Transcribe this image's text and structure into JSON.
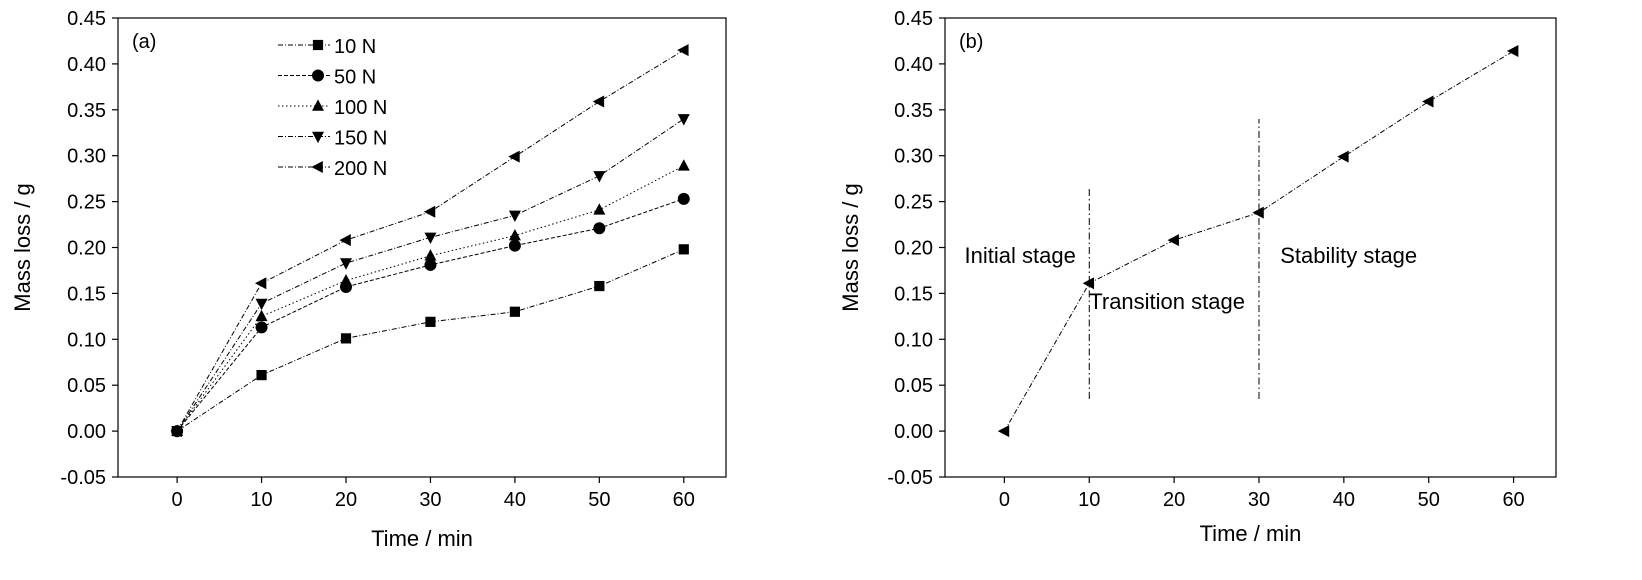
{
  "chart_data": [
    {
      "type": "line",
      "panel_label": "(a)",
      "xlabel": "Time / min",
      "ylabel": "Mass loss / g",
      "xlim": [
        -7,
        65
      ],
      "ylim": [
        -0.05,
        0.45
      ],
      "x_ticks": [
        0,
        10,
        20,
        30,
        40,
        50,
        60
      ],
      "y_ticks": [
        -0.05,
        0.0,
        0.05,
        0.1,
        0.15,
        0.2,
        0.25,
        0.3,
        0.35,
        0.4,
        0.45
      ],
      "x_tick_labels": [
        "0",
        "10",
        "20",
        "30",
        "40",
        "50",
        "60"
      ],
      "y_tick_labels": [
        "-0.05",
        "0.00",
        "0.05",
        "0.10",
        "0.15",
        "0.20",
        "0.25",
        "0.30",
        "0.35",
        "0.40",
        "0.45"
      ],
      "grid": false,
      "legend_position": "top-left",
      "x": [
        0,
        10,
        20,
        30,
        40,
        50,
        60
      ],
      "series": [
        {
          "name": "10 N",
          "marker": "square",
          "values": [
            0.0,
            0.061,
            0.101,
            0.119,
            0.13,
            0.158,
            0.198
          ]
        },
        {
          "name": "50 N",
          "marker": "circle",
          "values": [
            0.0,
            0.113,
            0.157,
            0.181,
            0.202,
            0.221,
            0.253
          ]
        },
        {
          "name": "100 N",
          "marker": "triangle-up",
          "values": [
            0.0,
            0.125,
            0.164,
            0.191,
            0.213,
            0.241,
            0.289
          ]
        },
        {
          "name": "150 N",
          "marker": "triangle-down",
          "values": [
            0.0,
            0.139,
            0.183,
            0.211,
            0.235,
            0.278,
            0.34
          ]
        },
        {
          "name": "200 N",
          "marker": "triangle-left",
          "values": [
            0.0,
            0.161,
            0.208,
            0.239,
            0.299,
            0.359,
            0.415
          ]
        }
      ]
    },
    {
      "type": "line",
      "panel_label": "(b)",
      "xlabel": "Time / min",
      "ylabel": "Mass loss / g",
      "xlim": [
        -7,
        65
      ],
      "ylim": [
        -0.05,
        0.45
      ],
      "x_ticks": [
        0,
        10,
        20,
        30,
        40,
        50,
        60
      ],
      "y_ticks": [
        -0.05,
        0.0,
        0.05,
        0.1,
        0.15,
        0.2,
        0.25,
        0.3,
        0.35,
        0.4,
        0.45
      ],
      "x_tick_labels": [
        "0",
        "10",
        "20",
        "30",
        "40",
        "50",
        "60"
      ],
      "y_tick_labels": [
        "-0.05",
        "0.00",
        "0.05",
        "0.10",
        "0.15",
        "0.20",
        "0.25",
        "0.30",
        "0.35",
        "0.40",
        "0.45"
      ],
      "grid": false,
      "x": [
        0,
        10,
        20,
        30,
        40,
        50,
        60
      ],
      "series": [
        {
          "marker": "triangle-left",
          "values": [
            0.0,
            0.161,
            0.208,
            0.238,
            0.299,
            0.359,
            0.414
          ]
        }
      ],
      "stage_lines": [
        {
          "x": 10,
          "y_range": [
            0.035,
            0.265
          ]
        },
        {
          "x": 30,
          "y_range": [
            0.035,
            0.34
          ]
        }
      ],
      "annotations": [
        {
          "text": "Initial stage",
          "x": -4.7,
          "y": 0.183
        },
        {
          "text": "Transition stage",
          "x": 10,
          "y": 0.133
        },
        {
          "text": "Stability stage",
          "x": 32.5,
          "y": 0.183
        }
      ]
    }
  ]
}
